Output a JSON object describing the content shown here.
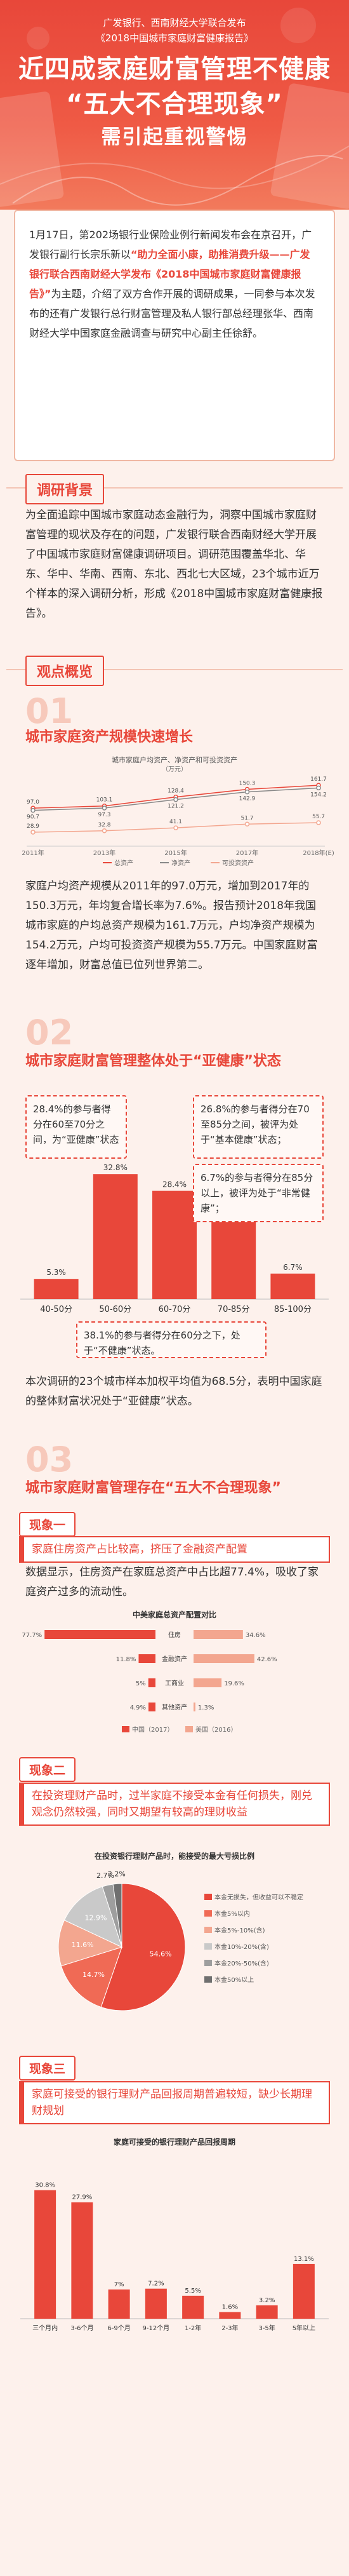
{
  "header": {
    "org_line1": "广发银行、西南财经大学联合发布",
    "org_line2": "《2018中国城市家庭财富健康报告》",
    "title_line1": "近四成家庭财富管理不健康",
    "title_line2": "“五大不合理现象”",
    "title_line3": "需引起重视警惕"
  },
  "intro": {
    "p1": "1月17日，第202场银行业保险业例行新闻发布会在京召开，广发银行副行长宗乐新以",
    "p1_hl": "“助力全面小康，助推消费升级——广发银行联合西南财经大学发布《2018中国城市家庭财富健康报告》”",
    "p2": "为主题，介绍了双方合作开展的调研成果，一同参与本次发布的还有广发银行总行财富管理及私人银行部总经理张华、西南财经大学中国家庭金融调查与研究中心副主任徐舒。"
  },
  "bg_section": {
    "tag": "调研背景",
    "text": "为全面追踪中国城市家庭动态金融行为，洞察中国城市家庭财富管理的现状及存在的问题，广发银行联合西南财经大学开展了中国城市家庭财富健康调研项目。调研范围覆盖华北、华东、华中、华南、西南、东北、西北七大区域，23个城市近万个样本的深入调研分析，形成《2018中国城市家庭财富健康报告》。"
  },
  "overview": {
    "tag": "观点概览",
    "num1": "01",
    "title1": "城市家庭资产规模快速增长",
    "text1": "家庭户均资产规模从2011年的97.0万元，增加到2017年的150.3万元，年均复合增长率为7.6%。报告预计2018年我国城市家庭的户均总资产规模为161.7万元，户均净资产规模为154.2万元，户均可投资资产规模为55.7万元。中国家庭财富逐年增加，财富总值已位列世界第二。",
    "num2": "02",
    "title2": "城市家庭财富管理整体处于“亚健康”状态",
    "call1": "28.4%的参与者得分在60至70分之间，为“亚健康”状态",
    "call2": "26.8%的参与者得分在70至85分之间，被评为处于“基本健康”状态；",
    "call3": "6.7%的参与者得分在85分以上，被评为处于“非常健康”；",
    "call4": "38.1%的参与者得分在60分之下，处于“不健康”状态。",
    "text2": "本次调研的23个城市样本加权平均值为68.5分，表明中国家庭的整体财富状况处于“亚健康”状态。",
    "num3": "03",
    "title3": "城市家庭财富管理存在“五大不合理现象”"
  },
  "phenomena": {
    "p1_head": "现象一",
    "p1_quote": "家庭住房资产占比较高，挤压了金融资产配置",
    "p1_text": "数据显示，住房资产在家庭总资产中占比超77.4%，吸收了家庭资产过多的流动性。",
    "p2_head": "现象二",
    "p2_quote": "在投资理财产品时，过半家庭不接受本金有任何损失，刚兑观念仍然较强，同时又期望有较高的理财收益",
    "p3_head": "现象三",
    "p3_quote": "家庭可接受的银行理财产品回报周期普遍较短，缺少长期理财规划"
  },
  "chart_data": [
    {
      "type": "line",
      "title": "城市家庭户均资产、净资产和可投资资产",
      "ylabel": "（万元）",
      "x": [
        "2011年",
        "2013年",
        "2015年",
        "2017年",
        "2018年(E)"
      ],
      "series": [
        {
          "name": "总资产",
          "values": [
            97.0,
            103.1,
            128.4,
            150.3,
            161.7
          ],
          "color": "#e8473a"
        },
        {
          "name": "净资产",
          "values": [
            90.7,
            97.3,
            121.2,
            142.9,
            154.2
          ],
          "color": "#888888"
        },
        {
          "name": "可投资资产",
          "values": [
            28.9,
            32.8,
            41.1,
            51.7,
            55.7
          ],
          "color": "#f3a68f"
        }
      ]
    },
    {
      "type": "bar",
      "categories": [
        "40-50分",
        "50-60分",
        "60-70分",
        "70-85分",
        "85-100分"
      ],
      "values": [
        5.3,
        32.8,
        28.4,
        26.8,
        6.7
      ],
      "ylim": [
        0,
        40
      ]
    },
    {
      "type": "bar",
      "title": "中美家庭总资产配置对比",
      "categories": [
        "住房",
        "金融资产",
        "工商业",
        "其他资产"
      ],
      "series": [
        {
          "name": "中国（2017）",
          "values": [
            77.7,
            11.8,
            5.0,
            4.9
          ],
          "color": "#e8473a"
        },
        {
          "name": "美国（2016）",
          "values": [
            34.6,
            42.6,
            19.6,
            1.3
          ],
          "color": "#f3a68f"
        }
      ]
    },
    {
      "type": "pie",
      "title": "在投资银行理财产品时，能接受的最大亏损比例",
      "labels": [
        "本金无损失，但收益可以不稳定",
        "本金5%以内",
        "本金5%-10%(含)",
        "本金10%-20%(含)",
        "本金20%-50%(含)",
        "本金50%以上"
      ],
      "values": [
        54.6,
        14.7,
        11.6,
        12.9,
        2.7,
        2.2
      ],
      "colors": [
        "#e8473a",
        "#f06a55",
        "#f3a68f",
        "#c9c9c9",
        "#9e9e9e",
        "#6f6f6f"
      ]
    },
    {
      "type": "bar",
      "title": "家庭可接受的银行理财产品回报周期",
      "categories": [
        "三个月内",
        "3-6个月",
        "6-9个月",
        "9-12个月",
        "1-2年",
        "2-3年",
        "3-5年",
        "5年以上"
      ],
      "values": [
        30.8,
        27.9,
        7.0,
        7.2,
        5.5,
        1.6,
        3.2,
        13.1
      ],
      "ylim": [
        0,
        35
      ]
    }
  ]
}
